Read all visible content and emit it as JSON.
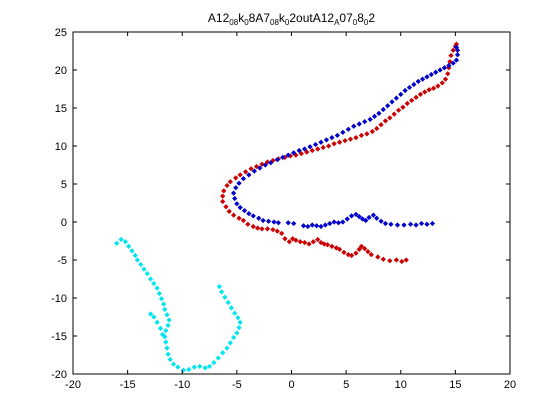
{
  "chart_data": {
    "type": "scatter",
    "title": {
      "main": "A12",
      "parts": [
        {
          "text": "08",
          "style": "sub"
        },
        {
          "text": "k",
          "style": "normal"
        },
        {
          "text": "0",
          "style": "sub"
        },
        {
          "text": "8A7",
          "style": "normal"
        },
        {
          "text": "08",
          "style": "sub"
        },
        {
          "text": "k",
          "style": "normal"
        },
        {
          "text": "0",
          "style": "sub"
        },
        {
          "text": "2outA12",
          "style": "normal"
        },
        {
          "text": "A",
          "style": "sub"
        },
        {
          "text": "07",
          "style": "normal"
        },
        {
          "text": "0",
          "style": "sub"
        },
        {
          "text": "8",
          "style": "normal"
        },
        {
          "text": "0",
          "style": "sub"
        },
        {
          "text": "2",
          "style": "normal"
        }
      ]
    },
    "xlim": [
      -20,
      20
    ],
    "ylim": [
      -20,
      25
    ],
    "xticks": [
      -20,
      -15,
      -10,
      -5,
      0,
      5,
      10,
      15,
      20
    ],
    "yticks": [
      -20,
      -15,
      -10,
      -5,
      0,
      5,
      10,
      15,
      20,
      25
    ],
    "xtick_labels": [
      "-20",
      "-15",
      "-10",
      "-5",
      "0",
      "5",
      "10",
      "15",
      "20"
    ],
    "ytick_labels": [
      "-20",
      "-15",
      "-10",
      "-5",
      "0",
      "5",
      "10",
      "15",
      "20",
      "25"
    ],
    "grid": false,
    "series": [
      {
        "color": "#cc0000",
        "marker": "diamond",
        "points": [
          [
            10.5,
            -5.0
          ],
          [
            10.1,
            -5.2
          ],
          [
            9.6,
            -5.0
          ],
          [
            9.0,
            -5.1
          ],
          [
            8.4,
            -4.9
          ],
          [
            7.9,
            -4.6
          ],
          [
            7.3,
            -4.3
          ],
          [
            7.0,
            -3.9
          ],
          [
            6.7,
            -3.5
          ],
          [
            6.4,
            -3.2
          ],
          [
            6.2,
            -3.6
          ],
          [
            5.9,
            -4.1
          ],
          [
            5.5,
            -4.4
          ],
          [
            5.2,
            -4.3
          ],
          [
            4.8,
            -4.0
          ],
          [
            4.4,
            -3.6
          ],
          [
            4.1,
            -3.4
          ],
          [
            3.7,
            -3.2
          ],
          [
            3.3,
            -3.0
          ],
          [
            3.0,
            -2.9
          ],
          [
            2.7,
            -2.7
          ],
          [
            2.4,
            -2.3
          ],
          [
            2.0,
            -2.6
          ],
          [
            1.6,
            -2.9
          ],
          [
            1.2,
            -2.7
          ],
          [
            0.8,
            -2.6
          ],
          [
            0.4,
            -2.4
          ],
          [
            0.1,
            -2.2
          ],
          [
            -0.2,
            -2.6
          ],
          [
            -0.6,
            -2.2
          ],
          [
            -0.9,
            -1.5
          ],
          [
            -1.3,
            -1.2
          ],
          [
            -1.7,
            -1.0
          ],
          [
            -2.2,
            -0.9
          ],
          [
            -2.7,
            -0.9
          ],
          [
            -3.1,
            -0.8
          ],
          [
            -3.5,
            -0.6
          ],
          [
            -4.0,
            -0.3
          ],
          [
            -4.4,
            0.2
          ],
          [
            -4.8,
            0.5
          ],
          [
            -5.3,
            0.9
          ],
          [
            -5.7,
            1.4
          ],
          [
            -6.0,
            2.0
          ],
          [
            -6.3,
            2.7
          ],
          [
            -6.3,
            3.4
          ],
          [
            -6.2,
            4.1
          ],
          [
            -5.9,
            4.8
          ],
          [
            -5.6,
            5.3
          ],
          [
            -5.1,
            5.8
          ],
          [
            -4.7,
            6.2
          ],
          [
            -4.2,
            6.6
          ],
          [
            -3.7,
            7.0
          ],
          [
            -3.2,
            7.3
          ],
          [
            -2.7,
            7.6
          ],
          [
            -2.2,
            7.9
          ],
          [
            -1.7,
            8.1
          ],
          [
            -1.2,
            8.3
          ],
          [
            -0.6,
            8.5
          ],
          [
            -0.1,
            8.7
          ],
          [
            0.4,
            8.8
          ],
          [
            0.9,
            9.0
          ],
          [
            1.4,
            9.2
          ],
          [
            1.9,
            9.4
          ],
          [
            2.4,
            9.6
          ],
          [
            2.9,
            9.8
          ],
          [
            3.4,
            10.0
          ],
          [
            3.9,
            10.3
          ],
          [
            4.4,
            10.5
          ],
          [
            4.9,
            10.7
          ],
          [
            5.4,
            10.9
          ],
          [
            5.9,
            11.1
          ],
          [
            6.4,
            11.4
          ],
          [
            6.9,
            11.6
          ],
          [
            7.4,
            11.9
          ],
          [
            7.8,
            12.3
          ],
          [
            8.2,
            12.8
          ],
          [
            8.6,
            13.3
          ],
          [
            9.0,
            13.7
          ],
          [
            9.4,
            14.2
          ],
          [
            9.8,
            14.7
          ],
          [
            10.2,
            15.1
          ],
          [
            10.6,
            15.6
          ],
          [
            11.0,
            16.0
          ],
          [
            11.4,
            16.4
          ],
          [
            11.8,
            16.8
          ],
          [
            12.2,
            17.1
          ],
          [
            12.6,
            17.4
          ],
          [
            13.0,
            17.6
          ],
          [
            13.4,
            17.9
          ],
          [
            13.8,
            18.3
          ],
          [
            14.1,
            18.8
          ],
          [
            14.3,
            19.5
          ],
          [
            14.4,
            20.3
          ],
          [
            14.5,
            21.1
          ],
          [
            14.6,
            21.9
          ],
          [
            14.8,
            22.6
          ],
          [
            15.0,
            23.1
          ],
          [
            15.1,
            23.4
          ]
        ]
      },
      {
        "color": "#0000cc",
        "marker": "diamond",
        "points": [
          [
            12.9,
            -0.2
          ],
          [
            12.4,
            -0.3
          ],
          [
            11.9,
            -0.2
          ],
          [
            11.4,
            -0.4
          ],
          [
            10.9,
            -0.3
          ],
          [
            10.3,
            -0.4
          ],
          [
            9.7,
            -0.4
          ],
          [
            9.1,
            -0.3
          ],
          [
            8.6,
            -0.2
          ],
          [
            8.2,
            0.1
          ],
          [
            7.8,
            0.5
          ],
          [
            7.5,
            0.9
          ],
          [
            7.1,
            0.6
          ],
          [
            6.8,
            0.2
          ],
          [
            6.5,
            0.4
          ],
          [
            6.2,
            0.7
          ],
          [
            5.9,
            1.0
          ],
          [
            5.5,
            0.8
          ],
          [
            5.1,
            0.4
          ],
          [
            4.7,
            0.0
          ],
          [
            4.3,
            -0.1
          ],
          [
            3.9,
            0.0
          ],
          [
            3.5,
            -0.2
          ],
          [
            3.1,
            -0.4
          ],
          [
            2.7,
            -0.6
          ],
          [
            2.3,
            -0.5
          ],
          [
            1.9,
            -0.4
          ],
          [
            1.5,
            -0.6
          ],
          [
            1.1,
            -0.5
          ],
          [
            0.2,
            -0.2
          ],
          [
            -0.3,
            -0.1
          ],
          [
            -1.2,
            -0.1
          ],
          [
            -1.6,
            0.0
          ],
          [
            -2.1,
            0.1
          ],
          [
            -2.6,
            0.2
          ],
          [
            -3.0,
            0.5
          ],
          [
            -3.5,
            0.8
          ],
          [
            -3.9,
            1.1
          ],
          [
            -4.3,
            1.5
          ],
          [
            -4.7,
            1.9
          ],
          [
            -5.0,
            2.4
          ],
          [
            -5.2,
            3.1
          ],
          [
            -5.3,
            3.8
          ],
          [
            -5.1,
            4.5
          ],
          [
            -4.8,
            5.1
          ],
          [
            -4.4,
            5.7
          ],
          [
            -3.9,
            6.2
          ],
          [
            -3.4,
            6.7
          ],
          [
            -2.9,
            7.1
          ],
          [
            -2.4,
            7.5
          ],
          [
            -1.9,
            7.8
          ],
          [
            -1.3,
            8.2
          ],
          [
            -0.8,
            8.5
          ],
          [
            -0.3,
            8.8
          ],
          [
            0.2,
            9.1
          ],
          [
            0.7,
            9.4
          ],
          [
            1.2,
            9.6
          ],
          [
            1.7,
            9.9
          ],
          [
            2.2,
            10.2
          ],
          [
            2.7,
            10.5
          ],
          [
            3.2,
            10.8
          ],
          [
            3.7,
            11.1
          ],
          [
            4.2,
            11.4
          ],
          [
            4.7,
            11.8
          ],
          [
            5.2,
            12.2
          ],
          [
            5.7,
            12.6
          ],
          [
            6.2,
            12.9
          ],
          [
            6.7,
            13.2
          ],
          [
            7.2,
            13.5
          ],
          [
            7.6,
            13.9
          ],
          [
            8.0,
            14.3
          ],
          [
            8.4,
            14.8
          ],
          [
            8.8,
            15.3
          ],
          [
            9.2,
            15.8
          ],
          [
            9.6,
            16.3
          ],
          [
            10.0,
            16.8
          ],
          [
            10.4,
            17.3
          ],
          [
            10.8,
            17.7
          ],
          [
            11.2,
            18.1
          ],
          [
            11.6,
            18.5
          ],
          [
            12.0,
            18.8
          ],
          [
            12.4,
            19.1
          ],
          [
            12.8,
            19.4
          ],
          [
            13.2,
            19.7
          ],
          [
            13.6,
            20.0
          ],
          [
            14.0,
            20.3
          ],
          [
            14.4,
            20.6
          ],
          [
            14.8,
            20.9
          ],
          [
            15.1,
            21.3
          ],
          [
            15.2,
            22.0
          ],
          [
            15.2,
            22.6
          ],
          [
            15.1,
            23.0
          ]
        ]
      },
      {
        "color": "#00e5ee",
        "marker": "diamond",
        "points": [
          [
            -16.0,
            -2.8
          ],
          [
            -15.6,
            -2.3
          ],
          [
            -15.2,
            -2.6
          ],
          [
            -14.9,
            -3.2
          ],
          [
            -14.6,
            -3.8
          ],
          [
            -14.3,
            -4.4
          ],
          [
            -14.1,
            -5.0
          ],
          [
            -13.8,
            -5.6
          ],
          [
            -13.5,
            -6.2
          ],
          [
            -13.2,
            -6.8
          ],
          [
            -12.9,
            -7.5
          ],
          [
            -12.6,
            -8.1
          ],
          [
            -12.3,
            -8.7
          ],
          [
            -12.1,
            -9.4
          ],
          [
            -11.9,
            -10.1
          ],
          [
            -11.7,
            -10.8
          ],
          [
            -11.6,
            -11.5
          ],
          [
            -11.4,
            -12.2
          ],
          [
            -11.2,
            -12.9
          ],
          [
            -11.3,
            -13.6
          ],
          [
            -11.5,
            -14.3
          ],
          [
            -11.6,
            -15.1
          ],
          [
            -11.5,
            -15.8
          ],
          [
            -11.4,
            -16.6
          ],
          [
            -11.3,
            -17.4
          ],
          [
            -11.1,
            -18.1
          ],
          [
            -10.8,
            -18.7
          ],
          [
            -10.4,
            -19.1
          ],
          [
            -9.9,
            -19.5
          ],
          [
            -9.4,
            -19.4
          ],
          [
            -8.9,
            -19.1
          ],
          [
            -8.4,
            -19.0
          ],
          [
            -7.9,
            -19.2
          ],
          [
            -7.5,
            -19.0
          ],
          [
            -7.1,
            -18.5
          ],
          [
            -6.7,
            -17.9
          ],
          [
            -6.3,
            -17.2
          ],
          [
            -5.9,
            -16.6
          ],
          [
            -5.6,
            -15.9
          ],
          [
            -5.3,
            -15.2
          ],
          [
            -5.0,
            -14.6
          ],
          [
            -4.8,
            -13.9
          ],
          [
            -4.7,
            -13.2
          ],
          [
            -4.9,
            -12.6
          ],
          [
            -5.2,
            -12.0
          ],
          [
            -5.5,
            -11.3
          ],
          [
            -5.8,
            -10.6
          ],
          [
            -6.1,
            -9.9
          ],
          [
            -6.4,
            -9.2
          ],
          [
            -6.6,
            -8.5
          ],
          [
            -12.9,
            -12.1
          ],
          [
            -12.6,
            -12.5
          ],
          [
            -12.3,
            -13.2
          ],
          [
            -12.0,
            -14.0
          ],
          [
            -11.8,
            -14.8
          ]
        ]
      }
    ]
  }
}
